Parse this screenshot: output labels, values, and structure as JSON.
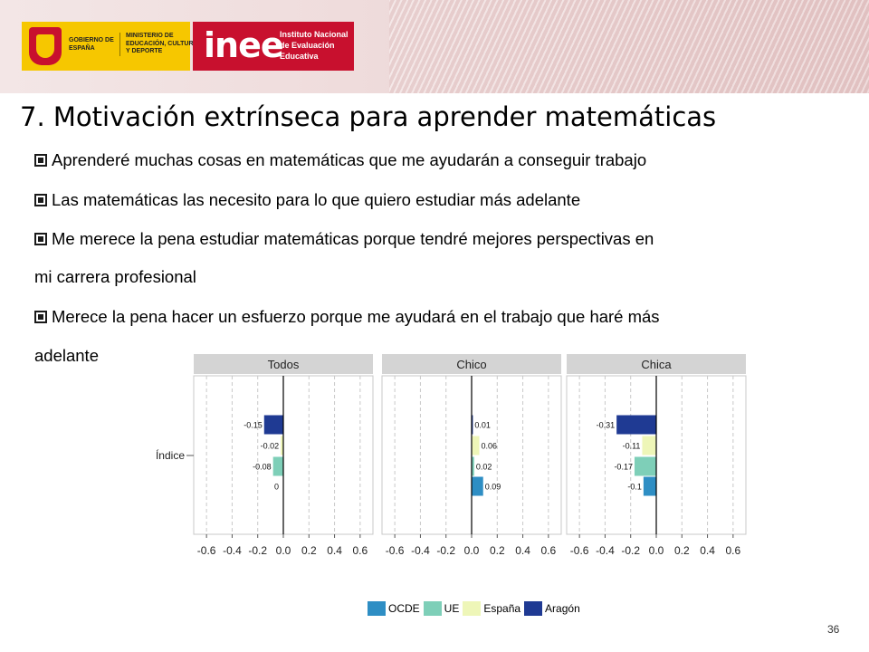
{
  "header": {
    "gov_text": "GOBIERNO DE ESPAÑA",
    "ministry_text": "MINISTERIO DE EDUCACIÓN, CULTURA Y DEPORTE",
    "inee_word": "inee",
    "inee_full": "Instituto Nacional de Evaluación Educativa"
  },
  "title": "7. Motivación extrínseca para aprender matemáticas",
  "bullets": [
    "Aprenderé muchas cosas en matemáticas que me ayudarán a conseguir trabajo",
    "Las matemáticas las necesito para lo que quiero estudiar más adelante",
    "Me merece la pena estudiar matemáticas porque tendré mejores perspectivas en",
    "Merece la pena hacer un esfuerzo porque me ayudará en el trabajo que haré más"
  ],
  "bullet_continuations": [
    "mi carrera profesional",
    "adelante"
  ],
  "chart_data": {
    "type": "bar",
    "orientation": "horizontal",
    "ylabel": "Índice",
    "xlim": [
      -0.7,
      0.7
    ],
    "xticks": [
      "-0.6",
      "-0.4",
      "-0.2",
      "0.0",
      "0.2",
      "0.4",
      "0.6"
    ],
    "panels": [
      {
        "name": "Todos",
        "values": [
          -0.15,
          -0.02,
          -0.08,
          0
        ],
        "labels": [
          "-0.15",
          "-0.02",
          "-0.08",
          "0"
        ]
      },
      {
        "name": "Chico",
        "values": [
          0.01,
          0.06,
          0.02,
          0.09
        ],
        "labels": [
          "0.01",
          "0.06",
          "0.02",
          "0.09"
        ]
      },
      {
        "name": "Chica",
        "values": [
          -0.31,
          -0.11,
          -0.17,
          -0.1
        ],
        "labels": [
          "-0.31",
          "-0.11",
          "-0.17",
          "-0.1"
        ]
      }
    ],
    "series": [
      {
        "name": "Aragón",
        "color": "#1f3a93"
      },
      {
        "name": "España",
        "color": "#eef6b8"
      },
      {
        "name": "UE",
        "color": "#7ecfb8"
      },
      {
        "name": "OCDE",
        "color": "#2e8ec4"
      }
    ],
    "legend": [
      {
        "name": "OCDE",
        "color": "#2e8ec4"
      },
      {
        "name": "UE",
        "color": "#7ecfb8"
      },
      {
        "name": "España",
        "color": "#eef6b8"
      },
      {
        "name": "Aragón",
        "color": "#1f3a93"
      }
    ],
    "legend_position": "bottom",
    "grid": true
  },
  "slide_number": "36"
}
